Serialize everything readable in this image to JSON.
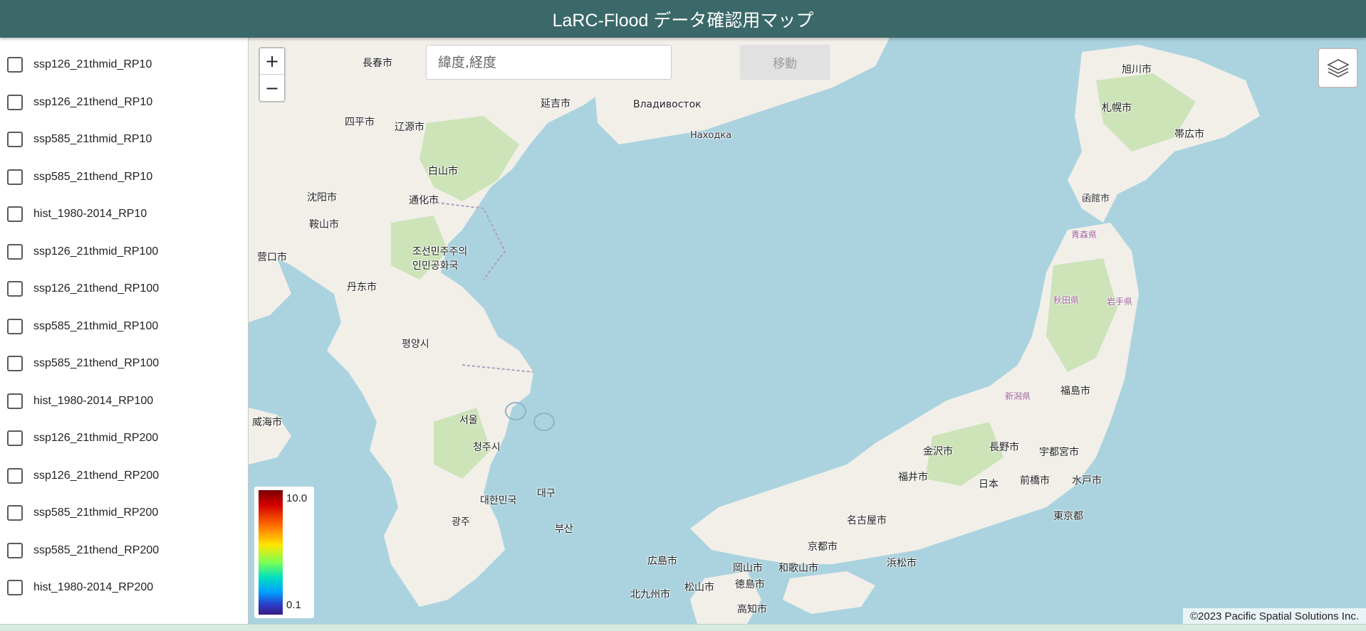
{
  "header": {
    "title": "LaRC-Flood データ確認用マップ"
  },
  "sidebar": {
    "layers": [
      {
        "label": "ssp126_21thmid_RP10",
        "checked": false
      },
      {
        "label": "ssp126_21thend_RP10",
        "checked": false
      },
      {
        "label": "ssp585_21thmid_RP10",
        "checked": false
      },
      {
        "label": "ssp585_21thend_RP10",
        "checked": false
      },
      {
        "label": "hist_1980-2014_RP10",
        "checked": false
      },
      {
        "label": "ssp126_21thmid_RP100",
        "checked": false
      },
      {
        "label": "ssp126_21thend_RP100",
        "checked": false
      },
      {
        "label": "ssp585_21thmid_RP100",
        "checked": false
      },
      {
        "label": "ssp585_21thend_RP100",
        "checked": false
      },
      {
        "label": "hist_1980-2014_RP100",
        "checked": false
      },
      {
        "label": "ssp126_21thmid_RP200",
        "checked": false
      },
      {
        "label": "ssp126_21thend_RP200",
        "checked": false
      },
      {
        "label": "ssp585_21thmid_RP200",
        "checked": false
      },
      {
        "label": "ssp585_21thend_RP200",
        "checked": false
      },
      {
        "label": "hist_1980-2014_RP200",
        "checked": false
      }
    ]
  },
  "map": {
    "zoom_in": "+",
    "zoom_out": "−",
    "search": {
      "placeholder": "緯度,経度",
      "value": ""
    },
    "move_button": "移動",
    "layers_icon": "layers-icon",
    "legend": {
      "max": "10.0",
      "min": "0.1"
    },
    "attribution": "©2023 Pacific Spatial Solutions Inc.",
    "colors": {
      "sea": "#aad3df",
      "land": "#f2efe9",
      "forest": "#cde3b8",
      "header": "#3b6869"
    },
    "labels": [
      {
        "text": "長春市"
      },
      {
        "text": "延吉市"
      },
      {
        "text": "Владивосток"
      },
      {
        "text": "Находка"
      },
      {
        "text": "四平市"
      },
      {
        "text": "辽源市"
      },
      {
        "text": "白山市"
      },
      {
        "text": "通化市"
      },
      {
        "text": "沈阳市"
      },
      {
        "text": "鞍山市"
      },
      {
        "text": "营口市"
      },
      {
        "text": "丹东市"
      },
      {
        "text": "조선민주주의인민공화국"
      },
      {
        "text": "평양시"
      },
      {
        "text": "서울"
      },
      {
        "text": "청주시"
      },
      {
        "text": "대한민국"
      },
      {
        "text": "대구"
      },
      {
        "text": "광주"
      },
      {
        "text": "부산"
      },
      {
        "text": "威海市"
      },
      {
        "text": "旭川市"
      },
      {
        "text": "札幌市"
      },
      {
        "text": "帯広市"
      },
      {
        "text": "函館市"
      },
      {
        "text": "青森県"
      },
      {
        "text": "秋田県"
      },
      {
        "text": "岩手県"
      },
      {
        "text": "福島市"
      },
      {
        "text": "新潟県"
      },
      {
        "text": "長野市"
      },
      {
        "text": "宇都宮市"
      },
      {
        "text": "金沢市"
      },
      {
        "text": "福井市"
      },
      {
        "text": "日本"
      },
      {
        "text": "前橋市"
      },
      {
        "text": "水戸市"
      },
      {
        "text": "東京都"
      },
      {
        "text": "名古屋市"
      },
      {
        "text": "京都市"
      },
      {
        "text": "広島市"
      },
      {
        "text": "岡山市"
      },
      {
        "text": "和歌山市"
      },
      {
        "text": "浜松市"
      },
      {
        "text": "北九州市"
      },
      {
        "text": "松山市"
      },
      {
        "text": "徳島市"
      },
      {
        "text": "高知市"
      }
    ]
  }
}
